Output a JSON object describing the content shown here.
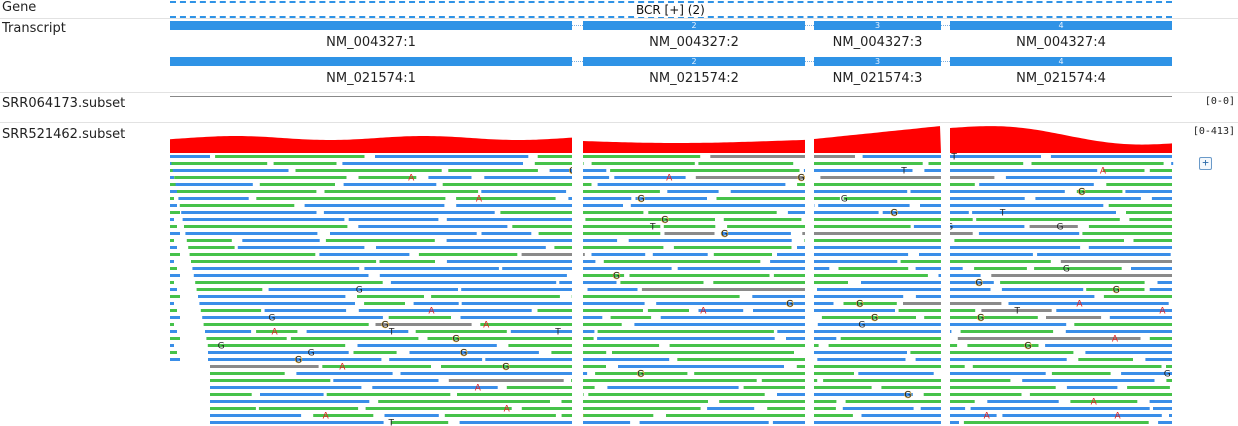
{
  "tracks": {
    "gene": {
      "label": "Gene",
      "name": "BCR [+] (2)"
    },
    "transcript": {
      "label": "Transcript",
      "transcripts": [
        {
          "names": [
            "NM_004327:1",
            "NM_004327:2",
            "NM_004327:3",
            "NM_004327:4"
          ],
          "exon_numbers": [
            "1",
            "2",
            "3",
            "4"
          ]
        },
        {
          "names": [
            "NM_021574:1",
            "NM_021574:2",
            "NM_021574:3",
            "NM_021574:4"
          ],
          "exon_numbers": [
            "1",
            "2",
            "3",
            "4"
          ]
        }
      ]
    },
    "samples": [
      {
        "label": "SRR064173.subset",
        "range": "[0-0]"
      },
      {
        "label": "SRR521462.subset",
        "range": "[0-413]"
      }
    ]
  },
  "expand_button": {
    "symbol": "+"
  },
  "colors": {
    "exon": "#2f93e6",
    "coverage": "#ff0000",
    "read_forward": "#3a8ee8",
    "read_reverse": "#46c24a",
    "read_lowmapq": "#8a8a8a",
    "mismatch_ring": "#e0b040",
    "mismatch_G": "#222222",
    "mismatch_A": "#e02020",
    "mismatch_T": "#222222"
  },
  "mismatch_bases": [
    "G",
    "A",
    "T"
  ]
}
